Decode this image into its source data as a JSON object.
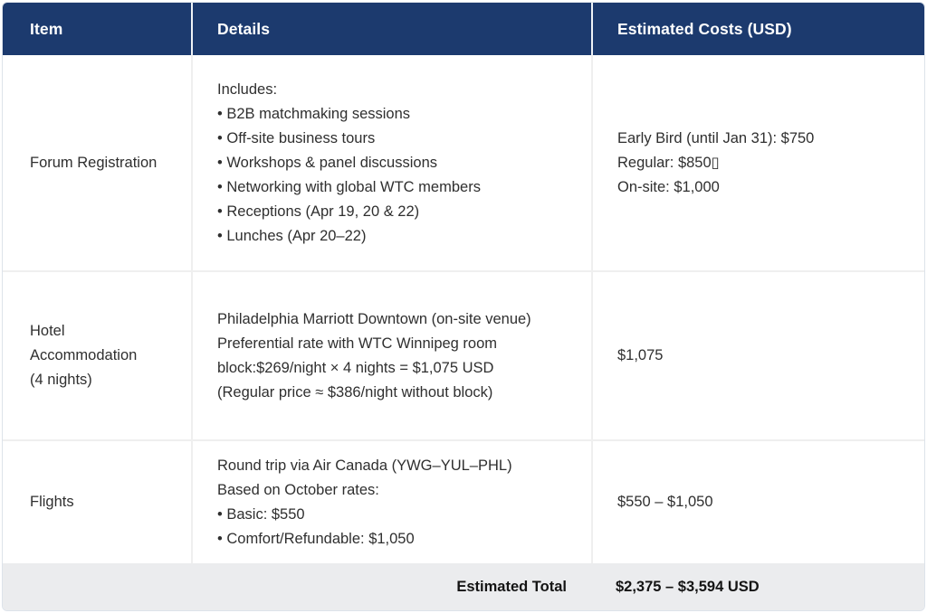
{
  "colors": {
    "header_bg": "#1c3a6e",
    "header_text": "#ffffff",
    "body_text": "#2f2f2f",
    "grid_line": "#efefef",
    "footer_bg": "#ebecee"
  },
  "table": {
    "columns": [
      {
        "label": "Item"
      },
      {
        "label": "Details"
      },
      {
        "label": "Estimated Costs (USD)"
      }
    ],
    "rows": [
      {
        "item": [
          "Forum Registration"
        ],
        "details": [
          "Includes:",
          "• B2B matchmaking sessions",
          "• Off-site business tours",
          "• Workshops & panel discussions",
          "• Networking with global WTC members",
          "• Receptions (Apr 19, 20 & 22)",
          "• Lunches (Apr 20–22)"
        ],
        "cost": [
          "Early Bird (until Jan 31): $750",
          "Regular: $850▯",
          "On-site: $1,000"
        ]
      },
      {
        "item": [
          "Hotel",
          "Accommodation",
          "(4 nights)"
        ],
        "details": [
          "Philadelphia Marriott Downtown (on-site venue)",
          "Preferential rate with WTC Winnipeg room",
          "block:$269/night × 4 nights = $1,075 USD",
          "(Regular price ≈ $386/night without block)"
        ],
        "cost": [
          "$1,075"
        ]
      },
      {
        "item": [
          "Flights"
        ],
        "details": [
          "Round trip via Air Canada (YWG–YUL–PHL)",
          "Based on October rates:",
          "• Basic: $550",
          "• Comfort/Refundable: $1,050"
        ],
        "cost": [
          "$550 – $1,050"
        ]
      }
    ],
    "footer": {
      "label": "Estimated Total",
      "value": "$2,375 – $3,594 USD"
    }
  }
}
